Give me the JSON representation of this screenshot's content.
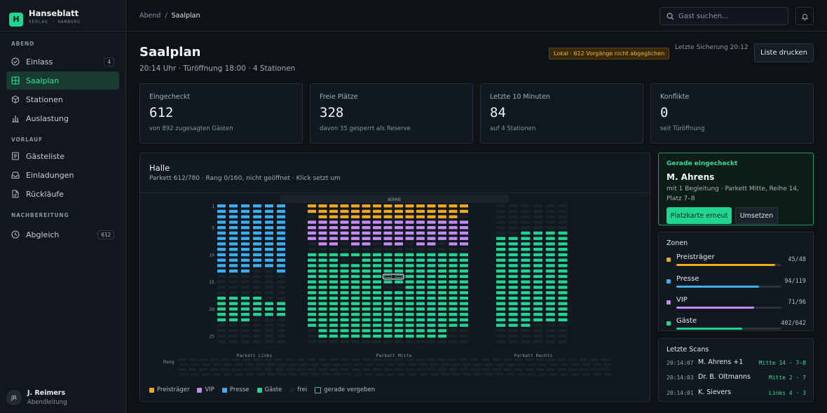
{
  "brand": {
    "name": "Hanseblatt",
    "sub": "VERLAG · HAMBURG",
    "logo_letter": "H"
  },
  "nav": {
    "sections": [
      {
        "title": "ABEND",
        "items": [
          {
            "label": "Einlass",
            "icon": "check-circle-icon",
            "badge": "4"
          },
          {
            "label": "Saalplan",
            "icon": "grid-icon",
            "active": true
          },
          {
            "label": "Stationen",
            "icon": "box-icon"
          },
          {
            "label": "Auslastung",
            "icon": "bar-chart-icon"
          }
        ]
      },
      {
        "title": "VORLAUF",
        "items": [
          {
            "label": "Gästeliste",
            "icon": "list-icon"
          },
          {
            "label": "Einladungen",
            "icon": "inbox-icon"
          },
          {
            "label": "Rückläufe",
            "icon": "document-icon"
          }
        ]
      },
      {
        "title": "NACHBEREITUNG",
        "items": [
          {
            "label": "Abgleich",
            "icon": "clock-icon",
            "badge": "612"
          }
        ]
      }
    ]
  },
  "user": {
    "initials": "JR",
    "name": "J. Reimers",
    "role": "Abendleitung"
  },
  "breadcrumb": {
    "parent": "Abend",
    "sep": "/",
    "current": "Saalplan"
  },
  "search": {
    "placeholder": "Gast suchen..."
  },
  "page": {
    "title": "Saalplan",
    "subtitle": "20:14 Uhr · Türöffnung 18:00 · 4 Stationen",
    "warning": "Lokal · 612 Vorgänge nicht abgeglichen",
    "backup": "Letzte Sicherung 20:12",
    "print_label": "Liste drucken"
  },
  "stats": [
    {
      "label": "Eingecheckt",
      "value": "612",
      "sub": "von 892 zugesagten Gästen"
    },
    {
      "label": "Freie Plätze",
      "value": "328",
      "sub": "davon 35 gesperrt als Reserve"
    },
    {
      "label": "Letzte 10 Minuten",
      "value": "84",
      "sub": "auf 4 Stationen"
    },
    {
      "label": "Konflikte",
      "value": "0",
      "sub": "seit Türöffnung"
    }
  ],
  "hall": {
    "title": "Halle",
    "subtitle": "Parkett 612/780 · Rang 0/160, nicht geöffnet · Klick setzt um",
    "stage": "BÜHNE",
    "sections": [
      "Parkett Links",
      "Parkett Mitte",
      "Parkett Rechts"
    ],
    "rang_label": "Rang",
    "row_labels": [
      "1",
      "5",
      "10",
      "15",
      "20",
      "25"
    ],
    "legend": [
      {
        "label": "Preisträger",
        "color": "#f2a81d"
      },
      {
        "label": "VIP",
        "color": "#c58af5"
      },
      {
        "label": "Presse",
        "color": "#3eaef2"
      },
      {
        "label": "Gäste",
        "color": "#22d491"
      },
      {
        "label": "frei",
        "color": "#1b222a"
      },
      {
        "label": "gerade vergeben",
        "color": "#0e1217"
      }
    ]
  },
  "colors": {
    "preistraeger": "#f2a81d",
    "vip": "#c58af5",
    "presse": "#3eaef2",
    "gaeste": "#22d491",
    "free": "#1b222a",
    "accent": "#22d491"
  },
  "just_checked": {
    "heading": "Gerade eingecheckt",
    "name": "M. Ahrens",
    "detail": "mit 1 Begleitung · Parkett Mitte, Reihe 14, Platz 7–8",
    "primary": "Platzkarte erneut",
    "secondary": "Umsetzen"
  },
  "zones": {
    "heading": "Zonen",
    "items": [
      {
        "name": "Preisträger",
        "count": "45/48",
        "value": 45,
        "max": 48,
        "color": "#f2a81d"
      },
      {
        "name": "Presse",
        "count": "94/119",
        "value": 94,
        "max": 119,
        "color": "#3eaef2"
      },
      {
        "name": "VIP",
        "count": "71/96",
        "value": 71,
        "max": 96,
        "color": "#c58af5"
      },
      {
        "name": "Gäste",
        "count": "402/642",
        "value": 402,
        "max": 642,
        "color": "#22d491"
      }
    ]
  },
  "scans": {
    "heading": "Letzte Scans",
    "items": [
      {
        "time": "20:14:07",
        "name": "M. Ahrens +1",
        "place": "Mitte 14 · 7–8"
      },
      {
        "time": "20:14:03",
        "name": "Dr. B. Oltmanns",
        "place": "Mitte 2 · 7"
      },
      {
        "time": "20:14:01",
        "name": "K. Sievers",
        "place": "Links 4 · 3"
      }
    ]
  }
}
